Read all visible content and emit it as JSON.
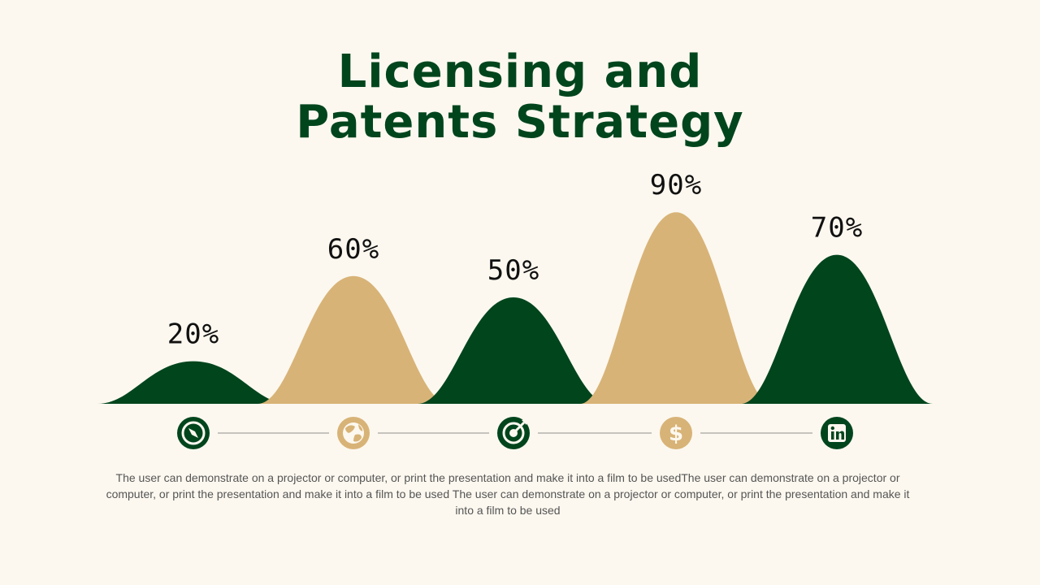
{
  "title": {
    "line1": "Licensing and",
    "line2": "Patents Strategy"
  },
  "colors": {
    "background": "#fcf8ef",
    "dark_green": "#01451d",
    "tan": "#d8b377",
    "text": "#111111",
    "muted_text": "#555555"
  },
  "chart_data": {
    "type": "area",
    "categories": [
      "compass-icon",
      "globe-icon",
      "target-icon",
      "dollar-icon",
      "linkedin-icon"
    ],
    "values": [
      20,
      60,
      50,
      90,
      70
    ],
    "labels": [
      "20%",
      "60%",
      "50%",
      "90%",
      "70%"
    ],
    "colors": [
      "#01451d",
      "#d8b377",
      "#01451d",
      "#d8b377",
      "#01451d"
    ],
    "ylim": [
      0,
      100
    ],
    "title": "",
    "xlabel": "",
    "ylabel": ""
  },
  "description": "The user can demonstrate on a projector or computer, or print the presentation and make it into a film to be usedThe user can demonstrate on a projector or computer, or print the presentation and make it into a film to be used The user can demonstrate on a projector or computer, or print the presentation and make it into a film to be used"
}
